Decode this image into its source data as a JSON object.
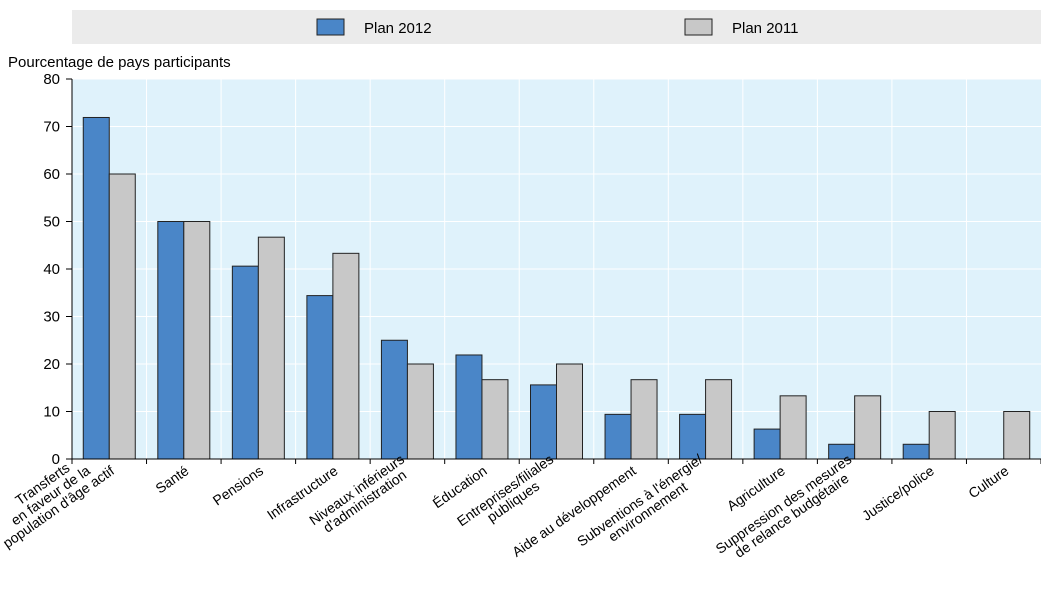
{
  "chart_data": {
    "type": "bar",
    "ylabel": "Pourcentage de pays participants",
    "ylim": [
      0,
      80
    ],
    "yticks": [
      0,
      10,
      20,
      30,
      40,
      50,
      60,
      70,
      80
    ],
    "grid": true,
    "legend_position": "top",
    "categories": [
      [
        "Transferts",
        "en faveur de la",
        "population d'âge actif"
      ],
      [
        "Santé"
      ],
      [
        "Pensions"
      ],
      [
        "Infrastructure"
      ],
      [
        "Niveaux inférieurs",
        "d'administration"
      ],
      [
        "Éducation"
      ],
      [
        "Entreprises/filiales",
        "publiques"
      ],
      [
        "Aide au développement"
      ],
      [
        "Subventions à l'énergie/",
        "environnement"
      ],
      [
        "Agriculture"
      ],
      [
        "Suppression des mesures",
        "de relance budgétaire"
      ],
      [
        "Justice/police"
      ],
      [
        "Culture"
      ]
    ],
    "series": [
      {
        "name": "Plan 2012",
        "color": "#4a86c8",
        "values": [
          71.9,
          50.0,
          40.6,
          34.4,
          25.0,
          21.9,
          15.6,
          9.4,
          9.4,
          6.3,
          3.1,
          3.1,
          0
        ]
      },
      {
        "name": "Plan 2011",
        "color": "#c8c8c8",
        "values": [
          60.0,
          50.0,
          46.7,
          43.3,
          20.0,
          16.7,
          20.0,
          16.7,
          16.7,
          13.3,
          13.3,
          10.0,
          10.0
        ]
      }
    ],
    "colors": {
      "plot_background": "#dff2fb",
      "legend_background": "#ebebeb",
      "grid": "#ffffff"
    }
  }
}
